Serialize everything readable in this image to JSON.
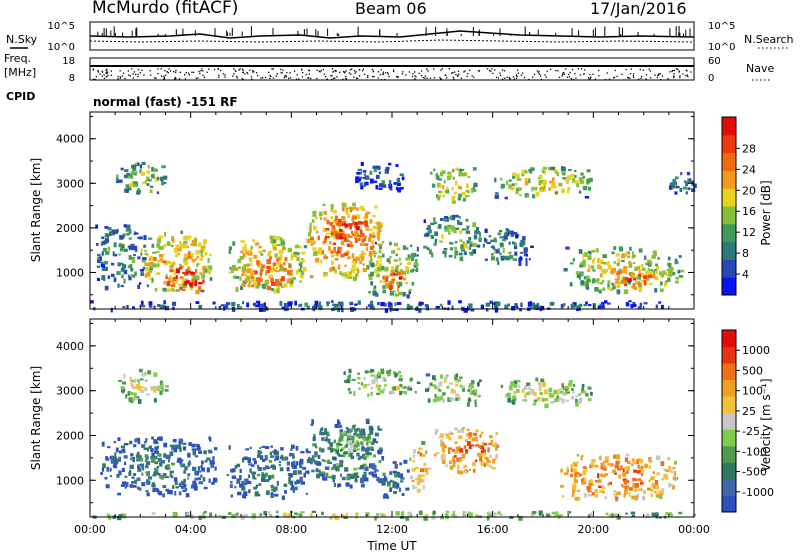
{
  "header": {
    "station": "McMurdo (fitACF)",
    "beam": "Beam 06",
    "date": "17/Jan/2016"
  },
  "top_panels": {
    "nsky_label": "N.Sky",
    "nsearch_label": "N.Search",
    "freq_label_1": "Freq.",
    "freq_label_2": "[MHz]",
    "nave_label": "Nave",
    "cpid_label": "CPID",
    "cpid_text": "normal (fast) -151 RF",
    "noise_left_ticks": [
      "10^5",
      "10^0"
    ],
    "noise_right_ticks": [
      "10^5",
      "10^0"
    ],
    "freq_left_ticks": [
      "18",
      "8"
    ],
    "nave_right_ticks": [
      "60",
      "0"
    ]
  },
  "chart_data": [
    {
      "type": "heatmap",
      "name": "power",
      "ylabel": "Slant Range [km]",
      "xlabel": "",
      "yticks": [
        1000,
        2000,
        3000,
        4000
      ],
      "ylim": [
        180,
        4600
      ],
      "xlim": [
        0,
        24
      ],
      "colorbar": {
        "label": "Power [dB]",
        "ticks": [
          "4",
          "8",
          "12",
          "16",
          "20",
          "24",
          "28"
        ],
        "colors": [
          "#0a14f0",
          "#2a47b8",
          "#2d7a78",
          "#3f9b5c",
          "#86bf3a",
          "#e7d21e",
          "#f39a1b",
          "#f06a14",
          "#ee3a0d",
          "#e30c06"
        ]
      },
      "regions": [
        {
          "t0": 0.0,
          "t1": 24.0,
          "r0": 190,
          "r1": 380,
          "level": 2
        },
        {
          "t0": 0.2,
          "t1": 2.2,
          "r0": 700,
          "r1": 2100,
          "level": 3
        },
        {
          "t0": 2.0,
          "t1": 4.8,
          "r0": 600,
          "r1": 1950,
          "level": 6
        },
        {
          "t0": 3.0,
          "t1": 4.5,
          "r0": 600,
          "r1": 1150,
          "level": 9
        },
        {
          "t0": 5.5,
          "t1": 8.5,
          "r0": 600,
          "r1": 1850,
          "level": 6
        },
        {
          "t0": 6.0,
          "t1": 8.0,
          "r0": 700,
          "r1": 1200,
          "level": 8
        },
        {
          "t0": 8.6,
          "t1": 11.6,
          "r0": 900,
          "r1": 2600,
          "level": 7
        },
        {
          "t0": 9.5,
          "t1": 11.0,
          "r0": 1700,
          "r1": 2300,
          "level": 9
        },
        {
          "t0": 11.0,
          "t1": 13.0,
          "r0": 500,
          "r1": 1700,
          "level": 5
        },
        {
          "t0": 11.6,
          "t1": 12.6,
          "r0": 600,
          "r1": 1100,
          "level": 8
        },
        {
          "t0": 13.2,
          "t1": 15.5,
          "r0": 1300,
          "r1": 2300,
          "level": 4
        },
        {
          "t0": 15.5,
          "t1": 17.5,
          "r0": 1200,
          "r1": 2000,
          "level": 3
        },
        {
          "t0": 18.8,
          "t1": 23.5,
          "r0": 600,
          "r1": 1600,
          "level": 5
        },
        {
          "t0": 20.5,
          "t1": 22.3,
          "r0": 650,
          "r1": 1050,
          "level": 8
        },
        {
          "t0": 1.0,
          "t1": 3.0,
          "r0": 2800,
          "r1": 3500,
          "level": 4
        },
        {
          "t0": 10.5,
          "t1": 12.5,
          "r0": 2900,
          "r1": 3500,
          "level": 2
        },
        {
          "t0": 13.5,
          "t1": 15.3,
          "r0": 2600,
          "r1": 3400,
          "level": 5
        },
        {
          "t0": 16.0,
          "t1": 20.0,
          "r0": 2700,
          "r1": 3400,
          "level": 5
        },
        {
          "t0": 23.0,
          "t1": 24.0,
          "r0": 2800,
          "r1": 3300,
          "level": 3
        }
      ]
    },
    {
      "type": "heatmap",
      "name": "velocity",
      "ylabel": "Slant Range [km]",
      "xlabel": "Time UT",
      "xticks": [
        "00:00",
        "04:00",
        "08:00",
        "12:00",
        "16:00",
        "20:00",
        "00:00"
      ],
      "yticks": [
        1000,
        2000,
        3000,
        4000
      ],
      "ylim": [
        180,
        4600
      ],
      "xlim": [
        0,
        24
      ],
      "colorbar": {
        "label": "Velocity [m s⁻¹]",
        "ticks": [
          "1000",
          "500",
          "100",
          "25",
          "-25",
          "-100",
          "-500",
          "-1000"
        ],
        "colors": [
          "#2d4fc0",
          "#3f68a8",
          "#2f7a60",
          "#4e9a50",
          "#7fcc4c",
          "#c8c8c8",
          "#f2c23a",
          "#f0a020",
          "#ee7018",
          "#e83410",
          "#e40c06"
        ]
      },
      "regions": [
        {
          "t0": 0.0,
          "t1": 24.0,
          "r0": 190,
          "r1": 330,
          "level": 5
        },
        {
          "t0": 0.4,
          "t1": 5.0,
          "r0": 700,
          "r1": 2000,
          "level": 2
        },
        {
          "t0": 5.4,
          "t1": 8.6,
          "r0": 650,
          "r1": 1800,
          "level": 2
        },
        {
          "t0": 8.6,
          "t1": 11.6,
          "r0": 900,
          "r1": 2400,
          "level": 3
        },
        {
          "t0": 9.6,
          "t1": 11.2,
          "r0": 1500,
          "r1": 2200,
          "level": 4
        },
        {
          "t0": 11.4,
          "t1": 12.6,
          "r0": 600,
          "r1": 1500,
          "level": 2
        },
        {
          "t0": 12.6,
          "t1": 13.4,
          "r0": 800,
          "r1": 1900,
          "level": 7
        },
        {
          "t0": 13.6,
          "t1": 16.2,
          "r0": 1200,
          "r1": 2200,
          "level": 8
        },
        {
          "t0": 18.6,
          "t1": 23.3,
          "r0": 600,
          "r1": 1600,
          "level": 8
        },
        {
          "t0": 10.0,
          "t1": 13.0,
          "r0": 2900,
          "r1": 3500,
          "level": 5
        },
        {
          "t0": 13.3,
          "t1": 15.5,
          "r0": 2700,
          "r1": 3400,
          "level": 5
        },
        {
          "t0": 16.0,
          "t1": 20.0,
          "r0": 2700,
          "r1": 3300,
          "level": 5
        },
        {
          "t0": 1.0,
          "t1": 3.0,
          "r0": 2800,
          "r1": 3500,
          "level": 5
        }
      ]
    }
  ]
}
